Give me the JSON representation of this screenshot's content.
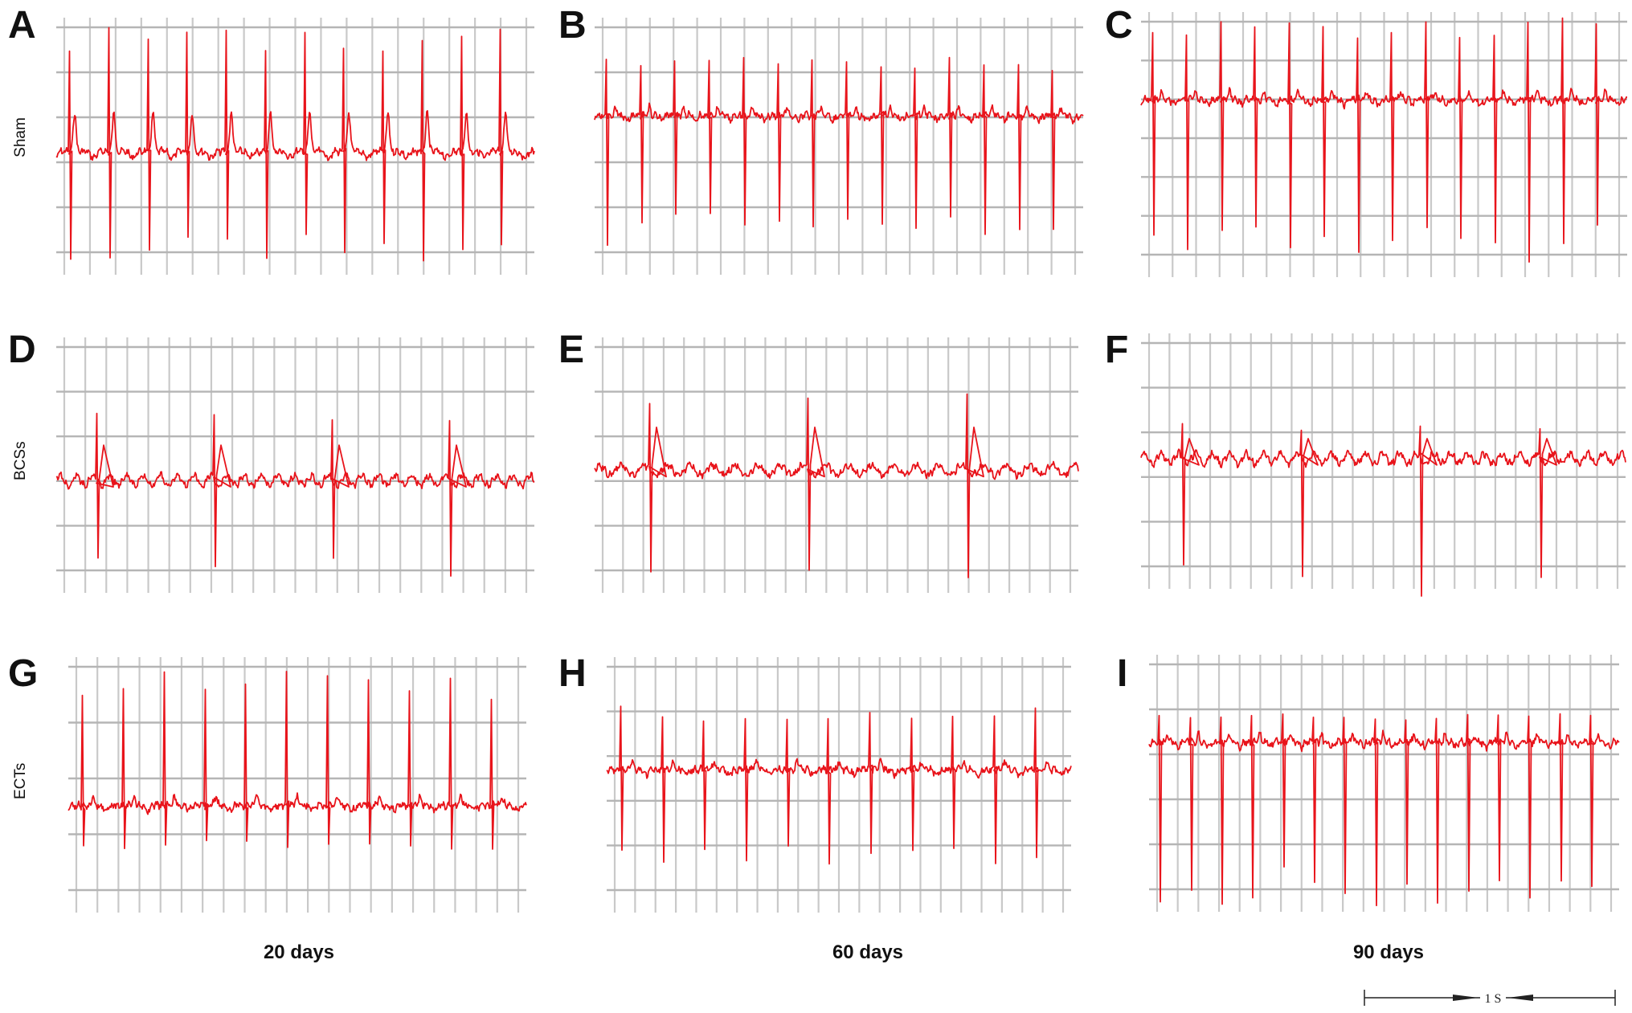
{
  "panels": [
    {
      "letter": "A"
    },
    {
      "letter": "B"
    },
    {
      "letter": "C"
    },
    {
      "letter": "D"
    },
    {
      "letter": "E"
    },
    {
      "letter": "F"
    },
    {
      "letter": "G"
    },
    {
      "letter": "H"
    },
    {
      "letter": "I"
    }
  ],
  "rows": [
    {
      "label": "Sham"
    },
    {
      "label": "BCSs"
    },
    {
      "label": "ECTs"
    }
  ],
  "columns": [
    {
      "label": "20 days"
    },
    {
      "label": "60 days"
    },
    {
      "label": "90 days"
    }
  ],
  "scale_bar": {
    "label": "1 S"
  },
  "colors": {
    "trace": "#e8141b",
    "grid": "#c9c9c9",
    "grid_major": "#b5b5b5",
    "text": "#111111"
  }
}
